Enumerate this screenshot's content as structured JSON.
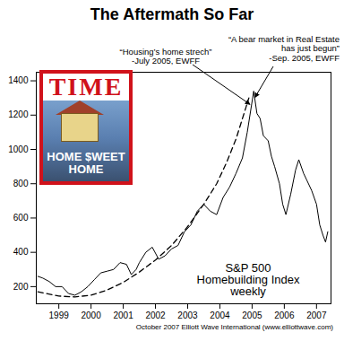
{
  "chart_data": {
    "type": "line",
    "title": "The Aftermath So Far",
    "footer": "October 2007 Elliott Wave International (www.elliottwave.com)",
    "image": {
      "masthead": "TIME",
      "headline": "HOME $WEET HOME"
    },
    "x": [
      1998.85,
      1999.0,
      1999.2,
      1999.4,
      1999.6,
      1999.8,
      2000.0,
      2000.2,
      2000.4,
      2000.6,
      2000.8,
      2001.0,
      2001.2,
      2001.4,
      2001.6,
      2001.75,
      2001.9,
      2002.0,
      2002.2,
      2002.4,
      2002.6,
      2002.8,
      2003.0,
      2003.2,
      2003.4,
      2003.6,
      2003.8,
      2004.0,
      2004.2,
      2004.4,
      2004.6,
      2004.8,
      2005.0,
      2005.2,
      2005.35,
      2005.5,
      2005.55,
      2005.65,
      2005.75,
      2005.85,
      2006.0,
      2006.1,
      2006.2,
      2006.35,
      2006.45,
      2006.55,
      2006.7,
      2006.85,
      2006.95,
      2007.1,
      2007.2,
      2007.35,
      2007.5,
      2007.6,
      2007.7,
      2007.78,
      2007.85
    ],
    "series": [
      {
        "name": "S&P 500\nHomebuilding Index\nweekly",
        "color": "#000000",
        "line_style": "solid",
        "values": [
          260,
          250,
          230,
          200,
          200,
          160,
          150,
          170,
          200,
          240,
          280,
          290,
          300,
          340,
          330,
          270,
          300,
          340,
          400,
          430,
          360,
          380,
          420,
          440,
          520,
          560,
          640,
          680,
          640,
          620,
          720,
          780,
          860,
          950,
          1100,
          1280,
          1340,
          1210,
          1180,
          1080,
          1050,
          960,
          900,
          800,
          680,
          620,
          740,
          880,
          940,
          860,
          820,
          760,
          680,
          560,
          500,
          460,
          520
        ]
      }
    ],
    "trend_line": {
      "color": "#000000",
      "line_style": "dashed",
      "x": [
        1998.85,
        1999.5,
        2000.0,
        2000.5,
        2001.0,
        2001.5,
        2002.0,
        2002.5,
        2003.0,
        2003.5,
        2004.0,
        2004.4,
        2004.7,
        2005.0,
        2005.2,
        2005.4
      ],
      "values": [
        170,
        145,
        140,
        150,
        180,
        225,
        285,
        355,
        440,
        550,
        680,
        800,
        920,
        1060,
        1180,
        1300
      ]
    },
    "annotations": [
      {
        "text": "“Housing’s home strech”\n-July 2005, EWFF",
        "x": 2005.45,
        "y": 1260
      },
      {
        "text": "“A bear market in Real Estate\nhas just begun”\n-Sep. 2005, EWFF",
        "x": 2005.6,
        "y": 1300
      }
    ],
    "xlim": [
      1998.8,
      2007.95
    ],
    "xticks": [
      {
        "value": 1999.5,
        "label": "1999"
      },
      {
        "value": 2000.5,
        "label": "2000"
      },
      {
        "value": 2001.5,
        "label": "2001"
      },
      {
        "value": 2002.5,
        "label": "2002"
      },
      {
        "value": 2003.5,
        "label": "2003"
      },
      {
        "value": 2004.5,
        "label": "2004"
      },
      {
        "value": 2005.5,
        "label": "2005"
      },
      {
        "value": 2006.5,
        "label": "2006"
      },
      {
        "value": 2007.5,
        "label": "2007"
      }
    ],
    "ylim": [
      100,
      1450
    ],
    "yticks": [
      200,
      400,
      600,
      800,
      1000,
      1200,
      1400
    ],
    "grid": false
  }
}
